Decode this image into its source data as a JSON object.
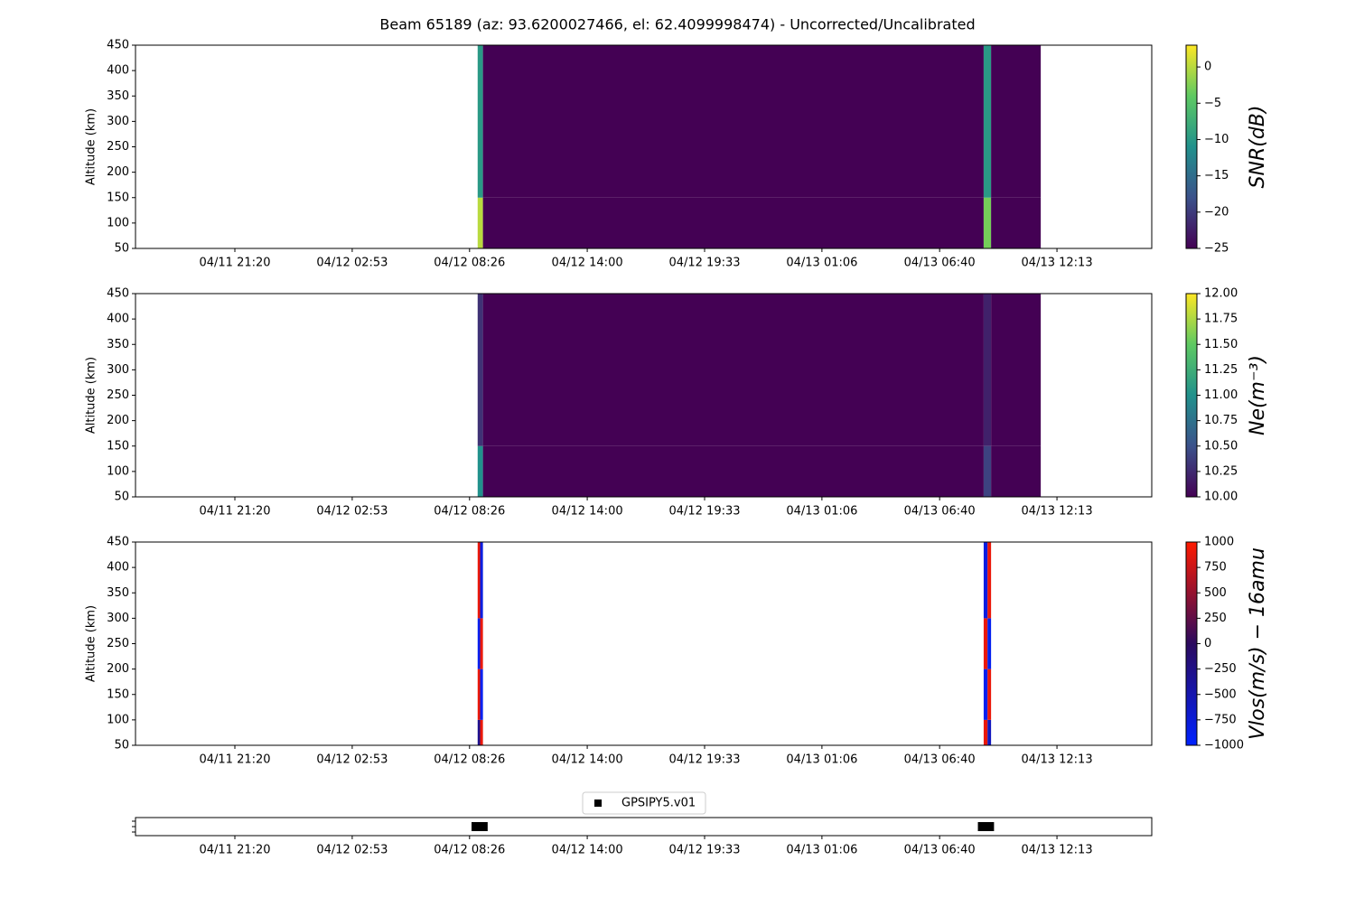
{
  "title": "Beam 65189 (az: 93.6200027466, el: 62.4099998474) - Uncorrected/Uncalibrated",
  "chart_data": [
    {
      "type": "heatmap",
      "ylabel": "Altitude (km)",
      "colorbar_label": "SNR(dB)",
      "xlim": [
        "04/11 16:38",
        "04/13 16:42"
      ],
      "xticks": [
        "04/11 21:20",
        "04/12 02:53",
        "04/12 08:26",
        "04/12 14:00",
        "04/12 19:33",
        "04/13 01:06",
        "04/13 06:40",
        "04/13 12:13"
      ],
      "ylim": [
        50,
        450
      ],
      "yticks": [
        50,
        100,
        150,
        200,
        250,
        300,
        350,
        400,
        450
      ],
      "colormap": [
        "#440154",
        "#3b528b",
        "#21918c",
        "#5ec962",
        "#fde725"
      ],
      "clim": [
        -25,
        3
      ],
      "cticks": [
        {
          "value": -25,
          "label": "−25"
        },
        {
          "value": -20,
          "label": "−20"
        },
        {
          "value": -15,
          "label": "−15"
        },
        {
          "value": -10,
          "label": "−10"
        },
        {
          "value": -5,
          "label": "−5"
        },
        0
      ],
      "x_edges": [
        "04/12 08:49",
        "04/12 09:04",
        "04/13 08:45",
        "04/13 09:06",
        "04/13 11:27"
      ],
      "y_edges": [
        50,
        150,
        450
      ],
      "z": [
        [
          0,
          -25,
          -3,
          -25
        ],
        [
          -10,
          -25,
          -10,
          -25
        ]
      ]
    },
    {
      "type": "heatmap",
      "ylabel": "Altitude (km)",
      "colorbar_label": "Ne(m⁻³)",
      "xlim": [
        "04/11 16:38",
        "04/13 16:42"
      ],
      "xticks": [
        "04/11 21:20",
        "04/12 02:53",
        "04/12 08:26",
        "04/12 14:00",
        "04/12 19:33",
        "04/13 01:06",
        "04/13 06:40",
        "04/13 12:13"
      ],
      "ylim": [
        50,
        450
      ],
      "yticks": [
        50,
        100,
        150,
        200,
        250,
        300,
        350,
        400,
        450
      ],
      "colormap": [
        "#440154",
        "#3b528b",
        "#21918c",
        "#5ec962",
        "#fde725"
      ],
      "clim": [
        10,
        12
      ],
      "cticks": [
        {
          "value": 10,
          "label": "10.00"
        },
        {
          "value": 10.25,
          "label": "10.25"
        },
        {
          "value": 10.5,
          "label": "10.50"
        },
        {
          "value": 10.75,
          "label": "10.75"
        },
        {
          "value": 11,
          "label": "11.00"
        },
        {
          "value": 11.25,
          "label": "11.25"
        },
        {
          "value": 11.5,
          "label": "11.50"
        },
        {
          "value": 11.75,
          "label": "11.75"
        },
        {
          "value": 12,
          "label": "12.00"
        }
      ],
      "x_edges": [
        "04/12 08:49",
        "04/12 09:04",
        "04/13 08:45",
        "04/13 09:06",
        "04/13 11:27"
      ],
      "y_edges": [
        50,
        150,
        450
      ],
      "z": [
        [
          11,
          10,
          10.4,
          10
        ],
        [
          10.3,
          10,
          10.2,
          10
        ]
      ]
    },
    {
      "type": "heatmap",
      "ylabel": "Altitude (km)",
      "colorbar_label": "Vlos(m/s) − 16amu",
      "xlim": [
        "04/11 16:38",
        "04/13 16:42"
      ],
      "xticks": [
        "04/11 21:20",
        "04/12 02:53",
        "04/12 08:26",
        "04/12 14:00",
        "04/12 19:33",
        "04/13 01:06",
        "04/13 06:40",
        "04/13 12:13"
      ],
      "ylim": [
        50,
        450
      ],
      "yticks": [
        50,
        100,
        150,
        200,
        250,
        300,
        350,
        400,
        450
      ],
      "colormap": [
        "#0022ff",
        "#2b0a5e",
        "#ff1a00"
      ],
      "clim": [
        -1000,
        1000
      ],
      "cticks": [
        {
          "value": -1000,
          "label": "−1000"
        },
        {
          "value": -750,
          "label": "−750"
        },
        {
          "value": -500,
          "label": "−500"
        },
        {
          "value": -250,
          "label": "−250"
        },
        0,
        250,
        500,
        750,
        1000
      ],
      "x_edges": [
        "04/12 08:49",
        "04/12 08:56",
        "04/12 09:04",
        "04/13 08:45",
        "04/13 08:56",
        "04/13 09:06"
      ],
      "y_edges": [
        50,
        100,
        200,
        300,
        450
      ],
      "z": [
        [
          -300,
          900,
          null,
          900,
          -600
        ],
        [
          900,
          -900,
          null,
          -900,
          900
        ],
        [
          -900,
          900,
          null,
          900,
          -900
        ],
        [
          900,
          -800,
          null,
          -800,
          900
        ]
      ]
    },
    {
      "type": "scatter",
      "legend": "upper center",
      "xlim": [
        "04/11 16:38",
        "04/13 16:42"
      ],
      "xticks": [
        "04/11 21:20",
        "04/12 02:53",
        "04/12 08:26",
        "04/12 14:00",
        "04/12 19:33",
        "04/13 01:06",
        "04/13 06:40",
        "04/13 12:13"
      ],
      "ylim": [
        -1,
        1
      ],
      "series": [
        {
          "name": "GPSIPY5.v01",
          "color": "#000000",
          "x": [
            "04/12 08:47",
            "04/12 08:52",
            "04/12 08:57",
            "04/12 09:02",
            "04/13 08:44",
            "04/13 08:49",
            "04/13 08:54",
            "04/13 08:59"
          ],
          "values": [
            0,
            0,
            0,
            0,
            0,
            0,
            0,
            0
          ]
        }
      ]
    }
  ]
}
